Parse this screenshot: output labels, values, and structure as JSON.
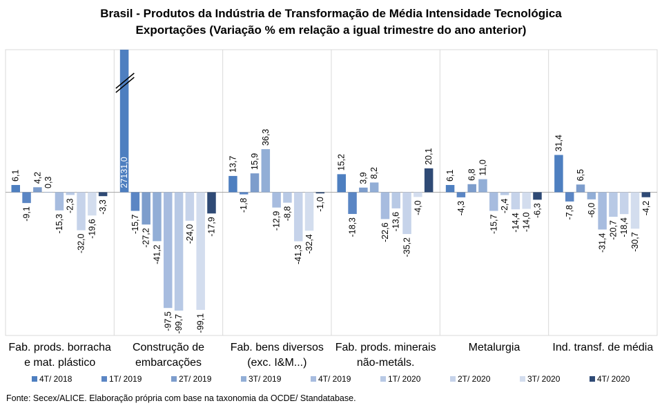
{
  "chart_data": {
    "type": "bar",
    "title": "Brasil - Produtos da Indústria de Transformação de Média Intensidade Tecnológica",
    "subtitle": "Exportações (Variação % em relação a igual trimestre do ano anterior)",
    "categories": [
      [
        "Fab. prods. borracha",
        "e mat. plástico"
      ],
      [
        "Construção de",
        "embarcações"
      ],
      [
        "Fab. bens diversos",
        "(exc. I&M...)"
      ],
      [
        "Fab. prods. minerais",
        "não-metáls."
      ],
      [
        "Metalurgia"
      ],
      [
        "Ind. transf. de média"
      ]
    ],
    "series": [
      {
        "name": "4T/ 2018",
        "color": "#4e7fc0",
        "values": [
          6.1,
          27131.0,
          13.7,
          15.2,
          6.1,
          31.4
        ],
        "labels": [
          "6,1",
          "27131,0",
          "13,7",
          "15,2",
          "6,1",
          "31,4"
        ]
      },
      {
        "name": "1T/ 2019",
        "color": "#5b86c4",
        "values": [
          -9.1,
          -15.7,
          -1.8,
          -18.3,
          -4.3,
          -7.8
        ],
        "labels": [
          "-9,1",
          "-15,7",
          "-1,8",
          "-18,3",
          "-4,3",
          "-7,8"
        ]
      },
      {
        "name": "2T/ 2019",
        "color": "#7d9dcc",
        "values": [
          4.2,
          -27.2,
          15.9,
          3.9,
          6.8,
          6.5
        ],
        "labels": [
          "4,2",
          "-27,2",
          "15,9",
          "3,9",
          "6,8",
          "6,5"
        ]
      },
      {
        "name": "3T/ 2019",
        "color": "#92aed6",
        "values": [
          0.3,
          -41.2,
          36.3,
          8.2,
          11.0,
          -6.0
        ],
        "labels": [
          "0,3",
          "-41,2",
          "36,3",
          "8,2",
          "11,0",
          "-6,0"
        ]
      },
      {
        "name": "4T/ 2019",
        "color": "#a7bcdf",
        "values": [
          -15.3,
          -97.5,
          -12.9,
          -22.6,
          -15.7,
          -31.4
        ],
        "labels": [
          "-15,3",
          "-97,5",
          "-12,9",
          "-22,6",
          "-15,7",
          "-31,4"
        ]
      },
      {
        "name": "1T/ 2020",
        "color": "#b8c9e5",
        "values": [
          -2.3,
          -99.7,
          -8.8,
          -13.6,
          -2.4,
          -20.7
        ],
        "labels": [
          "-2,3",
          "-99,7",
          "-8,8",
          "-13,6",
          "-2,4",
          "-20,7"
        ]
      },
      {
        "name": "2T/ 2020",
        "color": "#c6d3ea",
        "values": [
          -32.0,
          -24.0,
          -41.3,
          -35.2,
          -14.4,
          -18.4
        ],
        "labels": [
          "-32,0",
          "-24,0",
          "-41,3",
          "-35,2",
          "-14,4",
          "-18,4"
        ]
      },
      {
        "name": "3T/ 2020",
        "color": "#d3ddee",
        "values": [
          -19.6,
          -99.1,
          -32.4,
          -4.0,
          -14.0,
          -30.7
        ],
        "labels": [
          "-19,6",
          "-99,1",
          "-32,4",
          "-4,0",
          "-14,0",
          "-30,7"
        ]
      },
      {
        "name": "4T/ 2020",
        "color": "#2f4a75",
        "values": [
          -3.3,
          -17.9,
          -1.0,
          20.1,
          -6.3,
          -4.2
        ],
        "labels": [
          "-3,3",
          "-17,9",
          "-1,0",
          "20,1",
          "-6,3",
          "-4,2"
        ]
      }
    ],
    "axis_break": {
      "category": 1,
      "series": 0
    },
    "legend_position": "bottom",
    "grid": false
  },
  "source_note": "Fonte: Secex/ALICE. Elaboração própria com base na taxonomia da OCDE/ Standatabase."
}
